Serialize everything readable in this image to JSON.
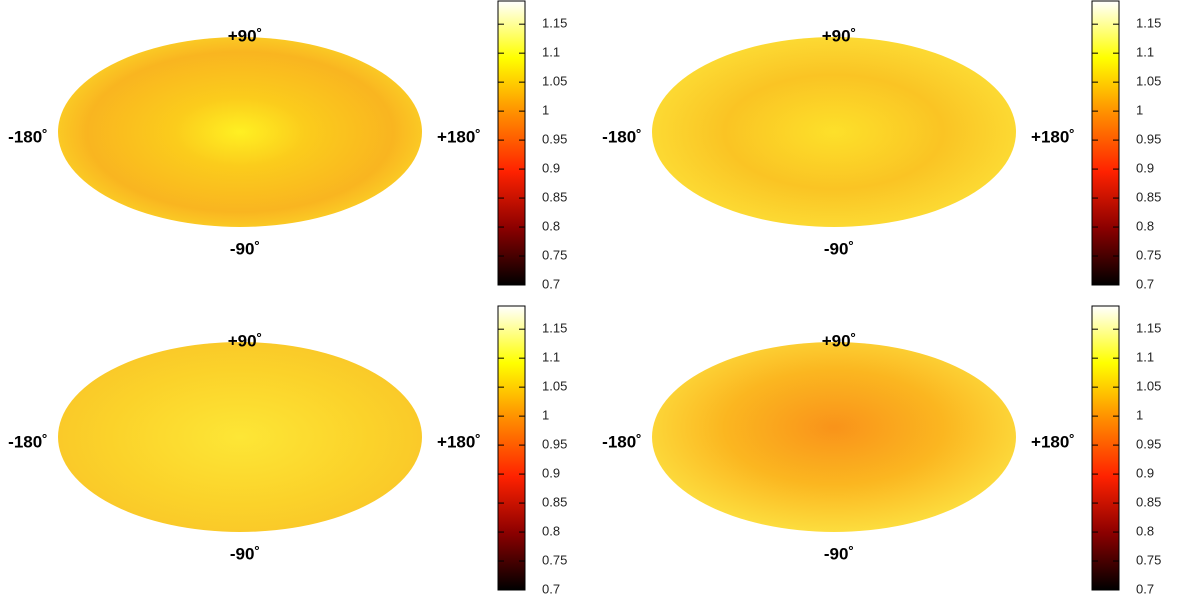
{
  "chart_data": [
    {
      "type": "skymap",
      "top_label": "+90˚",
      "bottom_label": "-90˚",
      "left_label": "-180˚",
      "right_label": "+180˚",
      "clim": [
        0.7,
        1.19
      ],
      "cticks": [
        0.7,
        0.75,
        0.8,
        0.85,
        0.9,
        0.95,
        1,
        1.05,
        1.1,
        1.15
      ],
      "colormap": [
        "#000000",
        "#8b0000",
        "#ff2200",
        "#ff8c00",
        "#ffff00",
        "#ffffff"
      ]
    },
    {
      "type": "skymap",
      "top_label": "+90˚",
      "bottom_label": "-90˚",
      "left_label": "-180˚",
      "right_label": "+180˚",
      "clim": [
        0.7,
        1.19
      ],
      "cticks": [
        0.7,
        0.75,
        0.8,
        0.85,
        0.9,
        0.95,
        1,
        1.05,
        1.1,
        1.15
      ],
      "colormap": [
        "#000000",
        "#8b0000",
        "#ff2200",
        "#ff8c00",
        "#ffff00",
        "#ffffff"
      ]
    },
    {
      "type": "skymap",
      "top_label": "+90˚",
      "bottom_label": "-90˚",
      "left_label": "-180˚",
      "right_label": "+180˚",
      "clim": [
        0.7,
        1.19
      ],
      "cticks": [
        0.7,
        0.75,
        0.8,
        0.85,
        0.9,
        0.95,
        1,
        1.05,
        1.1,
        1.15
      ],
      "colormap": [
        "#000000",
        "#8b0000",
        "#ff2200",
        "#ff8c00",
        "#ffff00",
        "#ffffff"
      ]
    },
    {
      "type": "skymap",
      "top_label": "+90˚",
      "bottom_label": "-90˚",
      "left_label": "-180˚",
      "right_label": "+180˚",
      "clim": [
        0.7,
        1.19
      ],
      "cticks": [
        0.7,
        0.75,
        0.8,
        0.85,
        0.9,
        0.95,
        1,
        1.05,
        1.1,
        1.15
      ],
      "colormap": [
        "#000000",
        "#8b0000",
        "#ff2200",
        "#ff8c00",
        "#ffff00",
        "#ffffff"
      ]
    }
  ]
}
